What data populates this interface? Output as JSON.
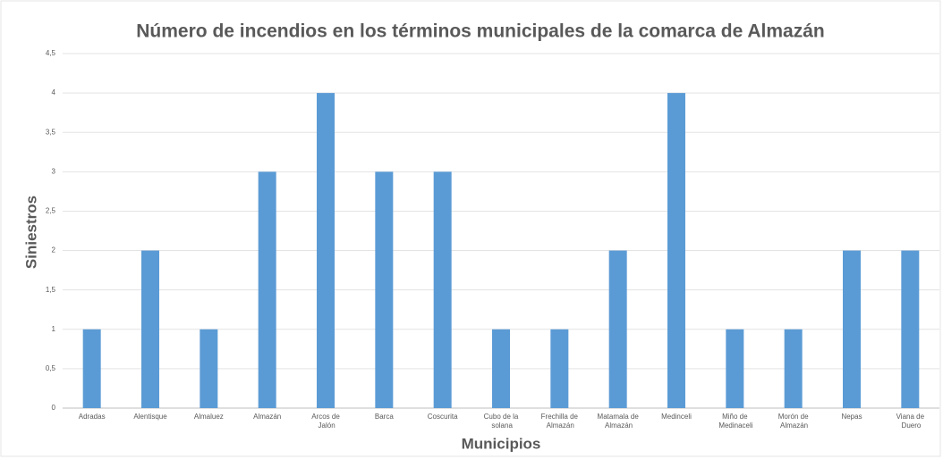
{
  "chart_data": {
    "type": "bar",
    "title": "Número de incendios en los términos municipales de la comarca de Almazán",
    "x_label": "Municipios",
    "y_label": "Siniestros",
    "categories": [
      "Adradas",
      "Alentisque",
      "Almaluez",
      "Almazán",
      "Arcos de Jalón",
      "Barca",
      "Coscurita",
      "Cubo de la solana",
      "Frechilla de Almazán",
      "Matamala de Almazán",
      "Medinceli",
      "Miño de Medinaceli",
      "Morón de Almazán",
      "Nepas",
      "Viana de Duero"
    ],
    "values": [
      1,
      2,
      1,
      3,
      4,
      3,
      3,
      1,
      1,
      2,
      4,
      1,
      1,
      2,
      2
    ],
    "color": "#5b9bd5",
    "ylim": [
      0,
      4.5
    ],
    "yticks": [
      0,
      {
        "value": 0.5,
        "label": "0,5"
      },
      1,
      {
        "value": 1.5,
        "label": "1,5"
      },
      2,
      {
        "value": 2.5,
        "label": "2,5"
      },
      3,
      {
        "value": 3.5,
        "label": "3,5"
      },
      4,
      {
        "value": 4.5,
        "label": "4,5"
      }
    ],
    "grid": true
  }
}
